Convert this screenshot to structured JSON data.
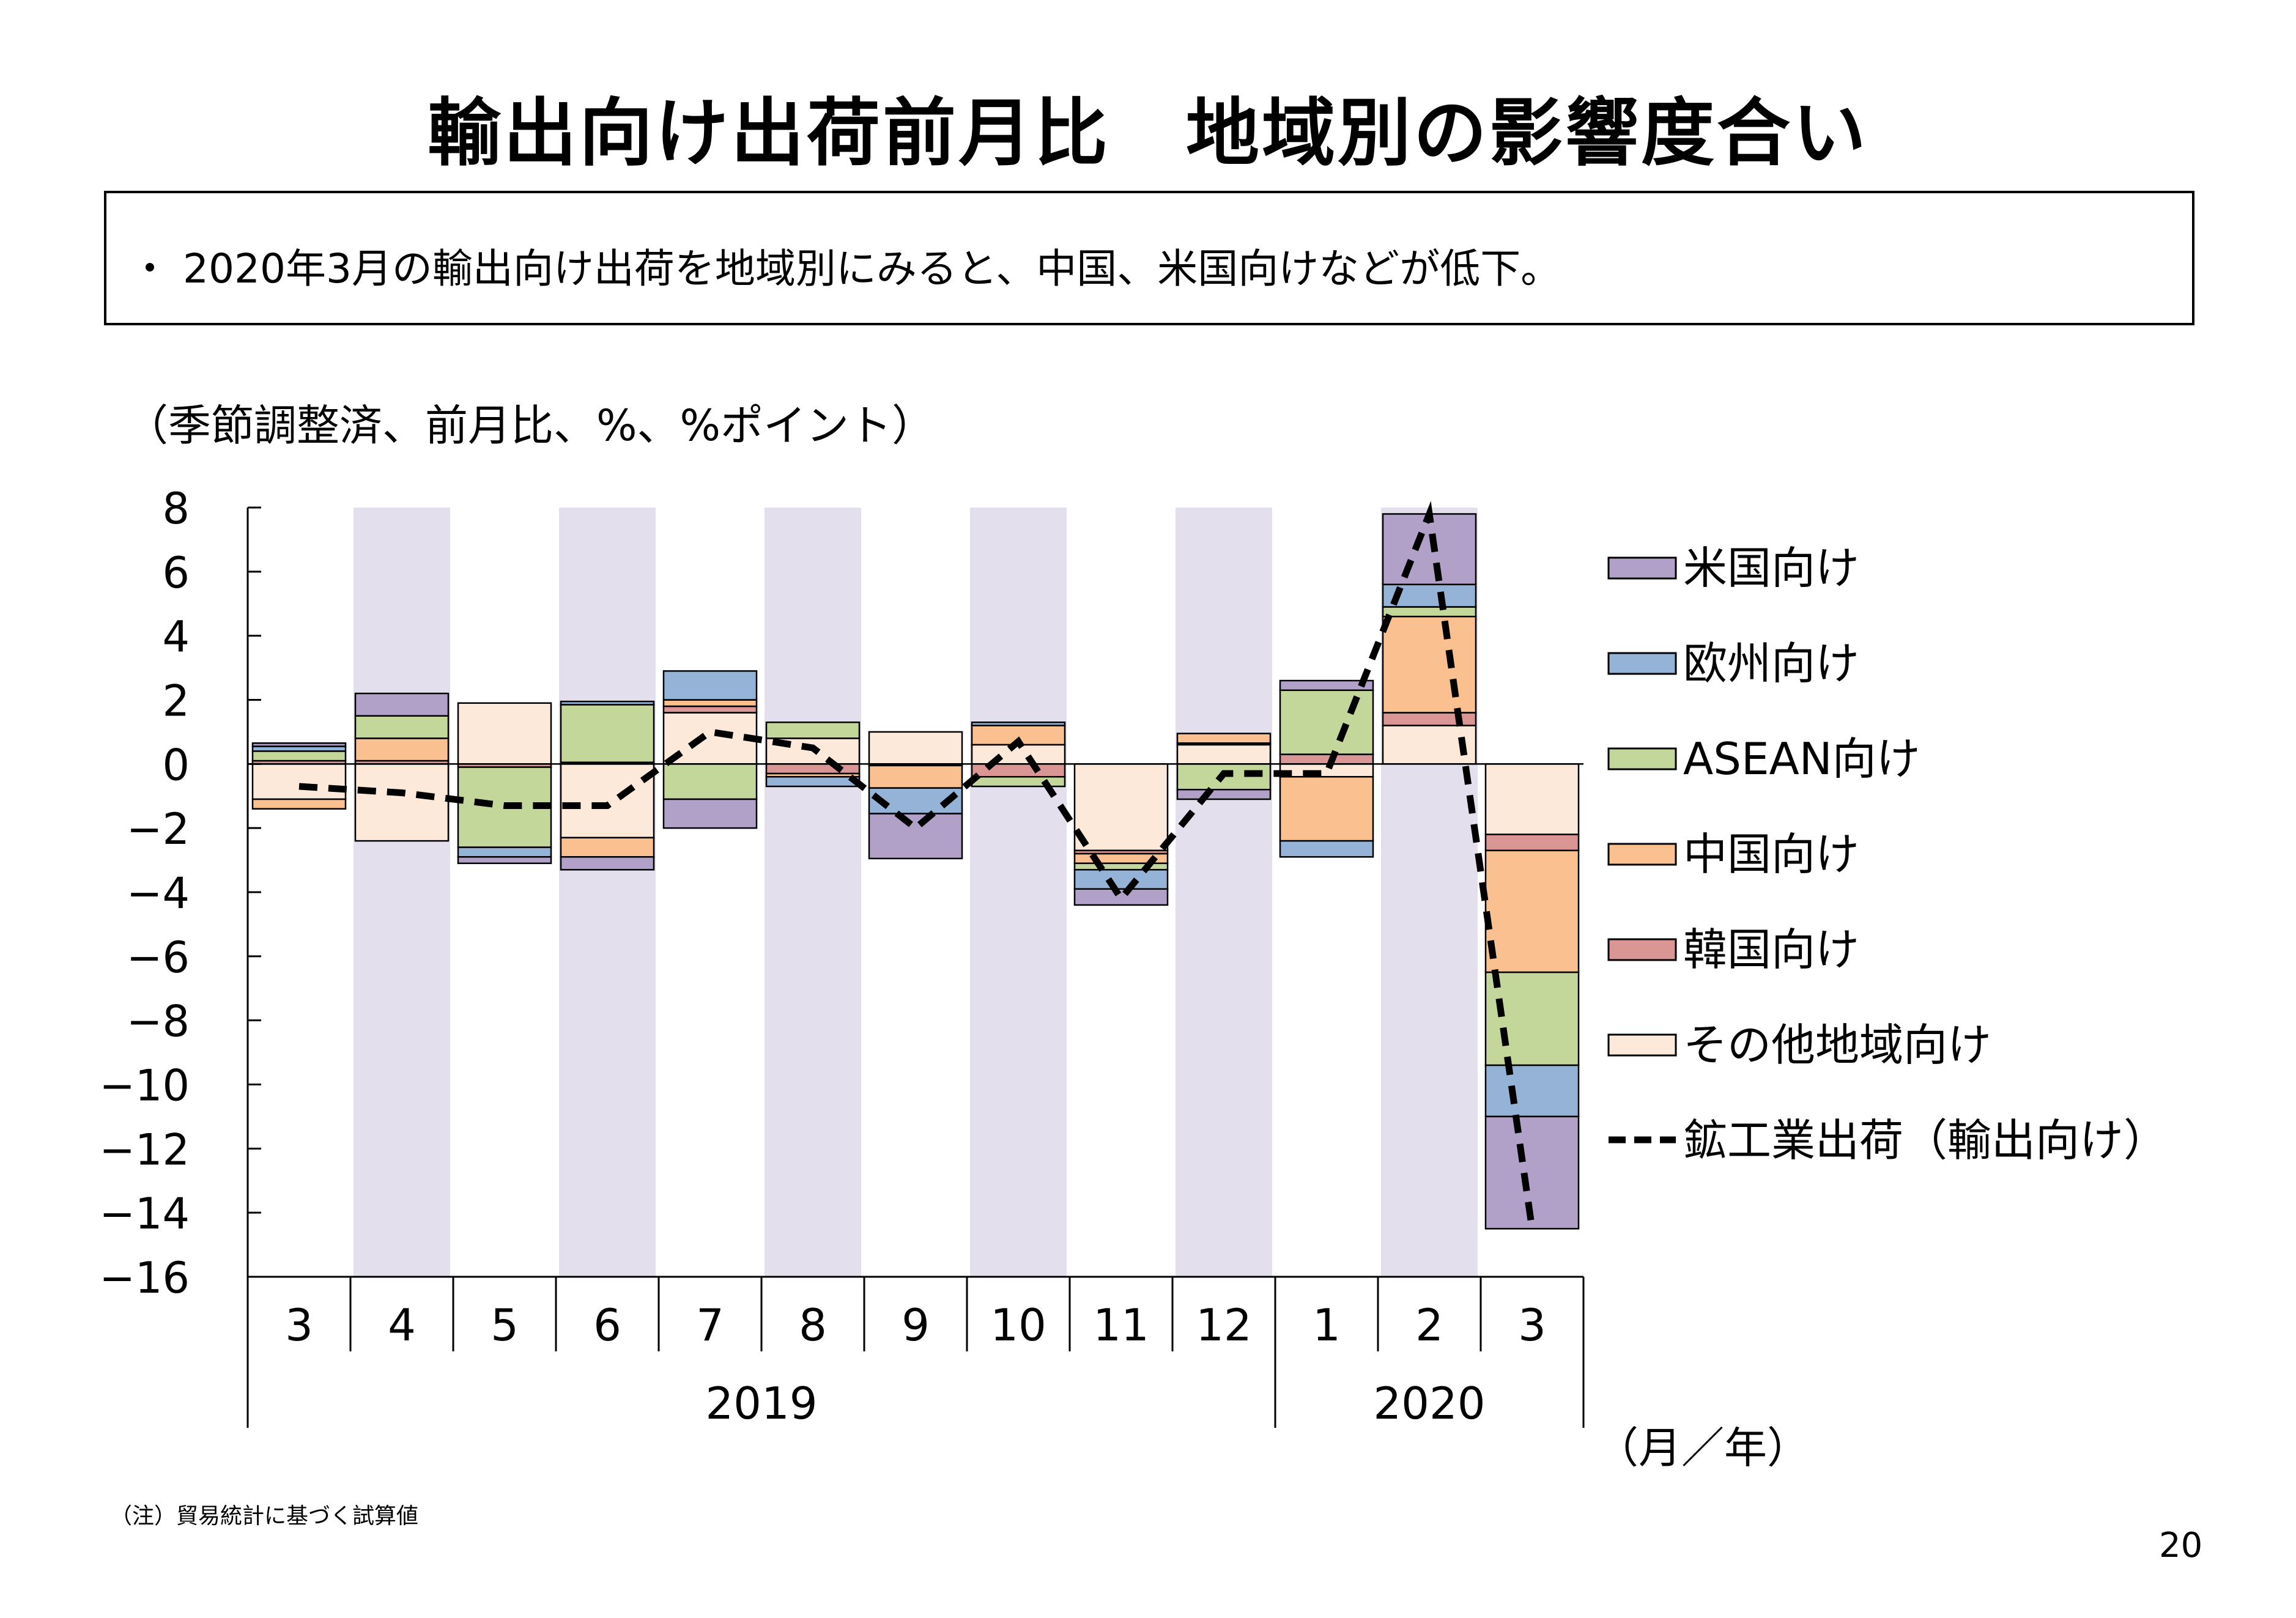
{
  "title": "輸出向け出荷前月比　地域別の影響度合い",
  "summary": "・ 2020年3月の輸出向け出荷を地域別にみると、中国、米国向けなどが低下。",
  "unit_note": "（季節調整済、前月比、%、%ポイント）",
  "footnote": "（注）貿易統計に基づく試算値",
  "page_number": "20",
  "colors": {
    "us": "#b1a0c7",
    "eu": "#95b3d7",
    "asean": "#c4d79b",
    "china": "#fac090",
    "korea": "#da9694",
    "other": "#fde9d9",
    "shade": "#e4dfec",
    "line": "#000000"
  },
  "chart_data": {
    "type": "bar",
    "stacked": true,
    "categories": [
      "3",
      "4",
      "5",
      "6",
      "7",
      "8",
      "9",
      "10",
      "11",
      "12",
      "1",
      "2",
      "3"
    ],
    "year_groups": [
      {
        "label": "2019",
        "start": 0,
        "end": 9
      },
      {
        "label": "2020",
        "start": 10,
        "end": 12
      }
    ],
    "x_unit_label": "（月／年）",
    "ylim": [
      -16,
      8
    ],
    "yticks": [
      8,
      6,
      4,
      2,
      0,
      -2,
      -4,
      -6,
      -8,
      -10,
      -12,
      -14,
      -16
    ],
    "shaded_categories": [
      1,
      3,
      5,
      7,
      9,
      11
    ],
    "series": [
      {
        "key": "other",
        "name": "その他地域向け",
        "values": [
          -1.1,
          -2.4,
          1.9,
          -2.3,
          1.6,
          0.8,
          1.0,
          0.6,
          -2.7,
          0.6,
          -0.4,
          1.2,
          -2.2
        ]
      },
      {
        "key": "korea",
        "name": "韓国向け",
        "values": [
          0.1,
          0.1,
          -0.1,
          0.05,
          0.2,
          -0.3,
          -0.05,
          -0.4,
          -0.1,
          0.05,
          0.3,
          0.4,
          -0.5
        ]
      },
      {
        "key": "china",
        "name": "中国向け",
        "values": [
          -0.3,
          0.7,
          0.0,
          -0.6,
          0.2,
          -0.1,
          -0.7,
          0.6,
          -0.3,
          0.3,
          -2.0,
          3.0,
          -3.8
        ]
      },
      {
        "key": "asean",
        "name": "ASEAN向け",
        "values": [
          0.3,
          0.7,
          -2.5,
          1.8,
          -1.1,
          0.5,
          0.0,
          -0.3,
          -0.2,
          -0.8,
          2.0,
          0.3,
          -2.9
        ]
      },
      {
        "key": "eu",
        "name": "欧州向け",
        "values": [
          0.15,
          0.0,
          -0.3,
          0.1,
          0.9,
          -0.3,
          -0.8,
          0.1,
          -0.6,
          0.0,
          -0.5,
          0.7,
          -1.6
        ]
      },
      {
        "key": "us",
        "name": "米国向け",
        "values": [
          0.1,
          0.7,
          -0.2,
          -0.4,
          -0.9,
          0.0,
          -1.4,
          0.0,
          -0.5,
          -0.3,
          0.3,
          2.2,
          -3.5
        ]
      }
    ],
    "line": {
      "name": "鉱工業出荷（輸出向け）",
      "values": [
        -0.7,
        -0.9,
        -1.3,
        -1.3,
        1.0,
        0.5,
        -2.0,
        0.7,
        -4.2,
        -0.3,
        -0.3,
        7.8,
        -14.5
      ]
    },
    "legend_order": [
      "us",
      "eu",
      "asean",
      "china",
      "korea",
      "other",
      "line"
    ],
    "legend_position": "right"
  }
}
